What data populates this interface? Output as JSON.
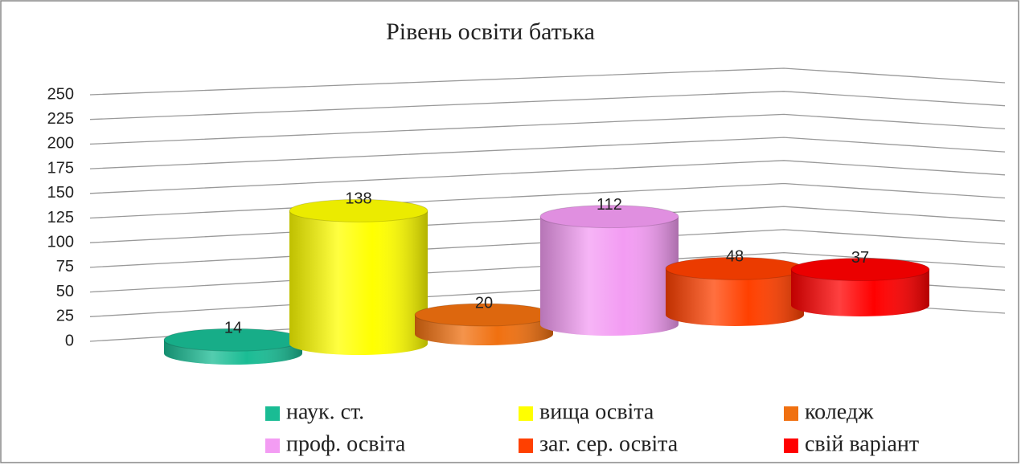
{
  "chart_data": {
    "type": "bar",
    "title": "Рівень освіти батька",
    "series": [
      {
        "name": "наук. ст.",
        "color": "#1abc94",
        "values": [
          14
        ]
      },
      {
        "name": "вища освіта",
        "color": "#ffff00",
        "values": [
          138
        ]
      },
      {
        "name": "коледж",
        "color": "#f07010",
        "values": [
          20
        ]
      },
      {
        "name": "проф. освіта",
        "color": "#f39cf3",
        "values": [
          112
        ]
      },
      {
        "name": "заг. сер. освіта",
        "color": "#ff4000",
        "values": [
          48
        ]
      },
      {
        "name": "свій варіант",
        "color": "#ff0000",
        "values": [
          37
        ]
      }
    ],
    "ylim": [
      0,
      250
    ],
    "yticks": [
      0,
      25,
      50,
      75,
      100,
      125,
      150,
      175,
      200,
      225,
      250
    ],
    "grid": true,
    "legend": "bottom"
  }
}
